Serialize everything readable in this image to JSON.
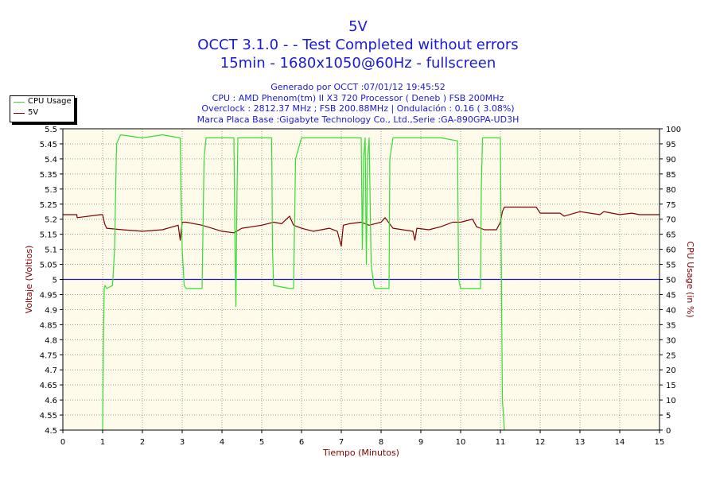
{
  "header": {
    "title": "5V",
    "subtitle1": "OCCT 3.1.0 -  - Test Completed without errors",
    "subtitle2": "15min - 1680x1050@60Hz - fullscreen"
  },
  "info": {
    "line1": "Generado por OCCT :07/01/12 19:45:52",
    "line2": "CPU : AMD Phenom(tm) II X3 720 Processor ( Deneb ) FSB 200MHz",
    "line3": "Overclock : 2812.37 MHz ; FSB 200.88MHz | Ondulación : 0.16 ( 3.08%)",
    "line4": "Marca Placa Base :Gigabyte Technology Co., Ltd.,Serie :GA-890GPA-UD3H"
  },
  "legend": [
    {
      "label": "CPU Usage",
      "color": "#33dd33"
    },
    {
      "label": "5V",
      "color": "#800000"
    }
  ],
  "chart_data": {
    "type": "line",
    "xlabel": "Tiempo (Minutos)",
    "ylabel": "Voltaje (Voltios)",
    "y2label": "CPU Usage (in %)",
    "xlim": [
      0,
      15
    ],
    "ylim": [
      4.5,
      5.5
    ],
    "y2lim": [
      0,
      100
    ],
    "x_ticks": [
      "0",
      "1",
      "2",
      "3",
      "4",
      "5",
      "6",
      "7",
      "8",
      "9",
      "10",
      "11",
      "12",
      "13",
      "14",
      "15"
    ],
    "y_ticks": [
      "4.5",
      "4.55",
      "4.6",
      "4.65",
      "4.7",
      "4.75",
      "4.8",
      "4.85",
      "4.9",
      "4.95",
      "5",
      "5.05",
      "5.1",
      "5.15",
      "5.2",
      "5.25",
      "5.3",
      "5.35",
      "5.4",
      "5.45",
      "5.5"
    ],
    "y2_ticks": [
      "0",
      "5",
      "10",
      "15",
      "20",
      "25",
      "30",
      "35",
      "40",
      "45",
      "50",
      "55",
      "60",
      "65",
      "70",
      "75",
      "80",
      "85",
      "90",
      "95",
      "100"
    ],
    "grid": true,
    "reference_line": {
      "y": 5.0,
      "color": "#1a1acc"
    },
    "plot_bg": "#fffbeb",
    "grid_color": "#9a9a9a",
    "series": [
      {
        "name": "5V",
        "axis": "left",
        "color": "#800000",
        "x": [
          0,
          0.35,
          0.36,
          0.95,
          1.0,
          1.05,
          1.1,
          1.5,
          2.0,
          2.5,
          2.9,
          2.95,
          3.0,
          3.1,
          3.5,
          4.0,
          4.3,
          4.5,
          5.0,
          5.3,
          5.5,
          5.7,
          5.8,
          6.0,
          6.3,
          6.7,
          6.9,
          7.0,
          7.05,
          7.2,
          7.5,
          7.7,
          8.0,
          8.1,
          8.3,
          8.8,
          8.85,
          8.9,
          9.2,
          9.5,
          9.8,
          10.0,
          10.3,
          10.4,
          10.6,
          10.9,
          11.0,
          11.05,
          11.1,
          11.5,
          11.9,
          12.0,
          12.5,
          12.6,
          13.0,
          13.5,
          13.6,
          14.0,
          14.3,
          14.5,
          15.0
        ],
        "y": [
          5.215,
          5.215,
          5.205,
          5.215,
          5.215,
          5.185,
          5.17,
          5.165,
          5.16,
          5.165,
          5.18,
          5.13,
          5.19,
          5.19,
          5.18,
          5.16,
          5.155,
          5.17,
          5.18,
          5.19,
          5.185,
          5.21,
          5.18,
          5.17,
          5.16,
          5.17,
          5.16,
          5.11,
          5.18,
          5.185,
          5.19,
          5.18,
          5.19,
          5.205,
          5.17,
          5.16,
          5.13,
          5.17,
          5.165,
          5.175,
          5.19,
          5.19,
          5.2,
          5.175,
          5.165,
          5.165,
          5.19,
          5.225,
          5.24,
          5.24,
          5.24,
          5.22,
          5.22,
          5.21,
          5.225,
          5.215,
          5.225,
          5.215,
          5.22,
          5.215,
          5.215
        ]
      },
      {
        "name": "CPU Usage",
        "axis": "right",
        "color": "#33dd33",
        "x": [
          0,
          1.0,
          1.02,
          1.04,
          1.06,
          1.1,
          1.25,
          1.3,
          1.35,
          1.45,
          2.0,
          2.5,
          2.95,
          2.97,
          3.0,
          3.05,
          3.1,
          3.5,
          3.55,
          3.6,
          4.0,
          4.3,
          4.32,
          4.35,
          4.38,
          4.4,
          5.0,
          5.25,
          5.27,
          5.3,
          5.7,
          5.8,
          5.85,
          6.0,
          7.0,
          7.5,
          7.53,
          7.56,
          7.6,
          7.63,
          7.66,
          7.7,
          7.75,
          7.8,
          7.82,
          7.85,
          8.2,
          8.22,
          8.3,
          9.0,
          9.5,
          9.92,
          9.95,
          10.0,
          10.5,
          10.52,
          10.55,
          11.0,
          11.02,
          11.05,
          11.1,
          15.0
        ],
        "y": [
          null,
          0,
          30,
          47,
          48,
          47,
          48,
          60,
          95,
          98,
          97,
          98,
          97,
          80,
          60,
          48,
          47,
          47,
          90,
          97,
          97,
          97,
          70,
          41,
          80,
          97,
          97,
          97,
          60,
          48,
          47,
          47,
          90,
          97,
          97,
          97,
          60,
          90,
          97,
          55,
          90,
          97,
          55,
          50,
          48,
          47,
          47,
          90,
          97,
          97,
          97,
          96,
          50,
          47,
          47,
          80,
          97,
          97,
          60,
          10,
          0,
          null
        ]
      }
    ]
  }
}
